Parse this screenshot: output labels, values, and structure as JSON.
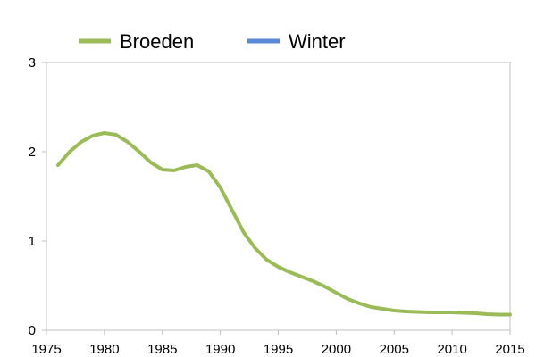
{
  "chart_data": {
    "type": "line",
    "title": "",
    "xlabel": "",
    "ylabel": "",
    "xlim": [
      1975,
      2015
    ],
    "ylim": [
      0,
      3
    ],
    "xticks": [
      1975,
      1980,
      1985,
      1990,
      1995,
      2000,
      2005,
      2010,
      2015
    ],
    "yticks": [
      0,
      1,
      2,
      3
    ],
    "xtick_labels": [
      "1975",
      "1980",
      "1985",
      "1990",
      "1995",
      "2000",
      "2005",
      "2010",
      "2015"
    ],
    "ytick_labels": [
      "0",
      "1",
      "2",
      "3"
    ],
    "grid": false,
    "legend": "top",
    "series": [
      {
        "name": "Broeden",
        "color": "#9bbb59",
        "x": [
          1976,
          1977,
          1978,
          1979,
          1980,
          1981,
          1982,
          1983,
          1984,
          1985,
          1986,
          1987,
          1988,
          1989,
          1990,
          1991,
          1992,
          1993,
          1994,
          1995,
          1996,
          1997,
          1998,
          1999,
          2000,
          2001,
          2002,
          2003,
          2004,
          2005,
          2006,
          2007,
          2008,
          2009,
          2010,
          2011,
          2012,
          2013,
          2014,
          2015
        ],
        "y": [
          1.85,
          2.0,
          2.11,
          2.18,
          2.21,
          2.19,
          2.11,
          2.0,
          1.88,
          1.8,
          1.79,
          1.83,
          1.85,
          1.78,
          1.6,
          1.35,
          1.1,
          0.92,
          0.79,
          0.71,
          0.65,
          0.6,
          0.55,
          0.49,
          0.42,
          0.35,
          0.3,
          0.26,
          0.24,
          0.22,
          0.21,
          0.205,
          0.2,
          0.2,
          0.2,
          0.195,
          0.19,
          0.18,
          0.175,
          0.175
        ]
      },
      {
        "name": "Winter",
        "color": "#5a8ad6",
        "x": [],
        "y": []
      }
    ]
  }
}
